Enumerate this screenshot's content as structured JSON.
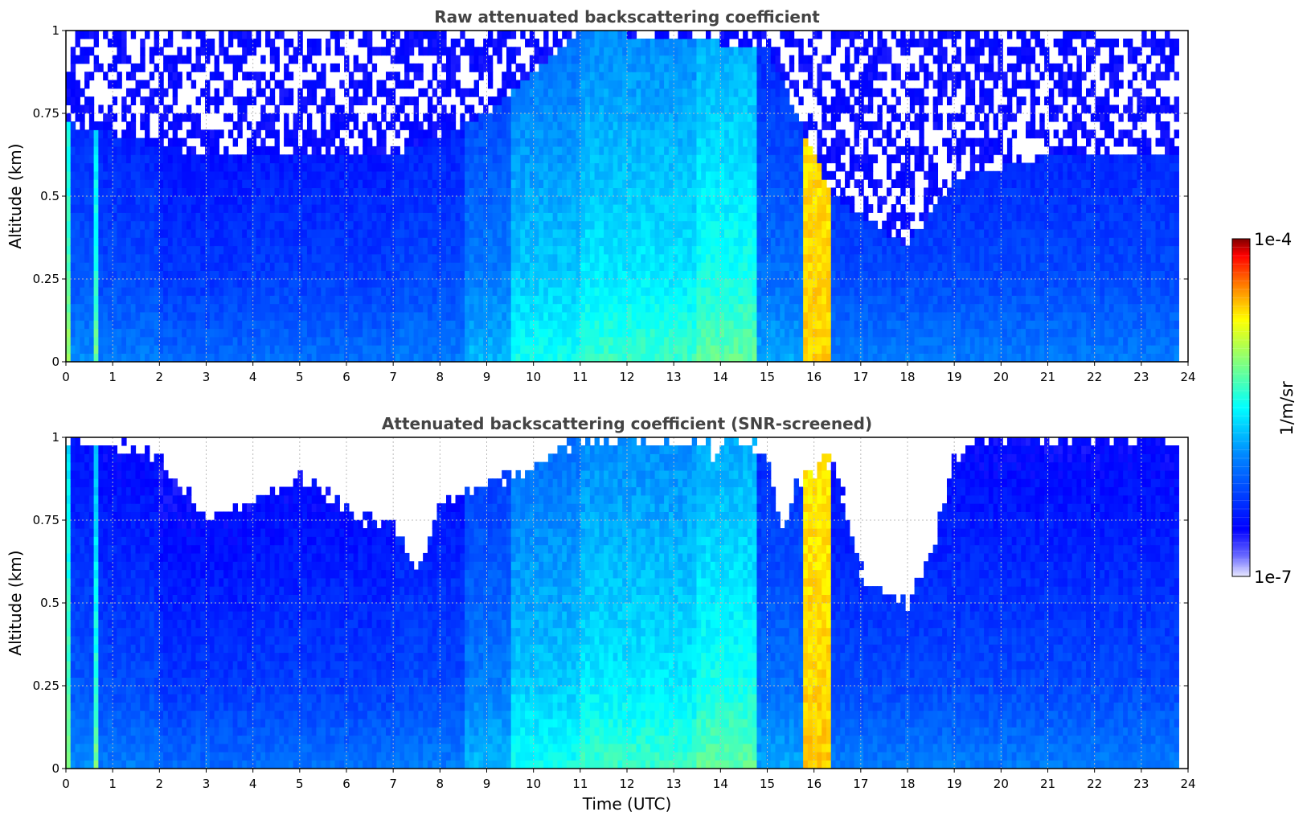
{
  "chart_data": [
    {
      "type": "heatmap",
      "title": "Raw attenuated backscattering coefficient",
      "xlabel": "",
      "ylabel": "Altitude (km)",
      "xlim": [
        0,
        24
      ],
      "ylim": [
        0,
        1
      ],
      "x_ticks": [
        "0",
        "1",
        "2",
        "3",
        "4",
        "5",
        "6",
        "7",
        "8",
        "9",
        "10",
        "11",
        "12",
        "13",
        "14",
        "15",
        "16",
        "17",
        "18",
        "19",
        "20",
        "21",
        "22",
        "23",
        "24"
      ],
      "y_ticks": [
        "0",
        "0.25",
        "0.5",
        "0.75",
        "1"
      ],
      "grid": true,
      "data_end_time": 23.8,
      "profiles": [
        {
          "t0": 0.0,
          "t1": 0.05,
          "level": 0.62
        },
        {
          "t0": 0.05,
          "t1": 0.55,
          "level": 0.32
        },
        {
          "t0": 0.55,
          "t1": 0.65,
          "level": 0.58
        },
        {
          "t0": 0.65,
          "t1": 2.0,
          "level": 0.3
        },
        {
          "t0": 2.0,
          "t1": 4.0,
          "level": 0.27
        },
        {
          "t0": 4.0,
          "t1": 7.0,
          "level": 0.28
        },
        {
          "t0": 7.0,
          "t1": 8.5,
          "level": 0.3
        },
        {
          "t0": 8.5,
          "t1": 9.5,
          "level": 0.38
        },
        {
          "t0": 9.5,
          "t1": 11.0,
          "level": 0.48
        },
        {
          "t0": 11.0,
          "t1": 13.5,
          "level": 0.52
        },
        {
          "t0": 13.5,
          "t1": 14.8,
          "level": 0.56
        },
        {
          "t0": 14.8,
          "t1": 15.8,
          "level": 0.36
        },
        {
          "t0": 15.8,
          "t1": 16.35,
          "level": 0.8
        },
        {
          "t0": 16.35,
          "t1": 18.8,
          "level": 0.3
        },
        {
          "t0": 18.8,
          "t1": 21.0,
          "level": 0.3
        },
        {
          "t0": 21.0,
          "t1": 23.8,
          "level": 0.3
        }
      ],
      "clear_air_altitude_km": [
        {
          "t": 0.0,
          "z": 0.72
        },
        {
          "t": 3.0,
          "z": 0.62
        },
        {
          "t": 7.0,
          "z": 0.62
        },
        {
          "t": 9.0,
          "z": 0.75
        },
        {
          "t": 11.0,
          "z": 1.0
        },
        {
          "t": 15.0,
          "z": 0.95
        },
        {
          "t": 16.4,
          "z": 0.5
        },
        {
          "t": 18.0,
          "z": 0.35
        },
        {
          "t": 19.0,
          "z": 0.55
        },
        {
          "t": 21.0,
          "z": 0.62
        },
        {
          "t": 23.8,
          "z": 0.62
        }
      ]
    },
    {
      "type": "heatmap",
      "title": "Attenuated backscattering coefficient (SNR-screened)",
      "xlabel": "Time (UTC)",
      "ylabel": "Altitude (km)",
      "xlim": [
        0,
        24
      ],
      "ylim": [
        0,
        1
      ],
      "x_ticks": [
        "0",
        "1",
        "2",
        "3",
        "4",
        "5",
        "6",
        "7",
        "8",
        "9",
        "10",
        "11",
        "12",
        "13",
        "14",
        "15",
        "16",
        "17",
        "18",
        "19",
        "20",
        "21",
        "22",
        "23",
        "24"
      ],
      "y_ticks": [
        "0",
        "0.25",
        "0.5",
        "0.75",
        "1"
      ],
      "grid": true,
      "data_end_time": 23.8,
      "screened_out_ceiling_km": [
        {
          "t": 0.0,
          "z": 1.0
        },
        {
          "t": 1.0,
          "z": 0.97
        },
        {
          "t": 2.0,
          "z": 0.95
        },
        {
          "t": 3.0,
          "z": 0.76
        },
        {
          "t": 4.0,
          "z": 0.8
        },
        {
          "t": 5.0,
          "z": 0.88
        },
        {
          "t": 6.0,
          "z": 0.78
        },
        {
          "t": 7.0,
          "z": 0.74
        },
        {
          "t": 7.5,
          "z": 0.6
        },
        {
          "t": 8.0,
          "z": 0.8
        },
        {
          "t": 9.0,
          "z": 0.86
        },
        {
          "t": 10.0,
          "z": 0.9
        },
        {
          "t": 11.0,
          "z": 1.0
        },
        {
          "t": 13.7,
          "z": 1.0
        },
        {
          "t": 13.8,
          "z": 0.88
        },
        {
          "t": 14.0,
          "z": 1.0
        },
        {
          "t": 15.0,
          "z": 0.95
        },
        {
          "t": 15.3,
          "z": 0.7
        },
        {
          "t": 15.6,
          "z": 0.85
        },
        {
          "t": 16.4,
          "z": 0.95
        },
        {
          "t": 17.0,
          "z": 0.6
        },
        {
          "t": 17.5,
          "z": 0.52
        },
        {
          "t": 18.0,
          "z": 0.48
        },
        {
          "t": 18.5,
          "z": 0.65
        },
        {
          "t": 19.0,
          "z": 0.95
        },
        {
          "t": 19.5,
          "z": 1.0
        },
        {
          "t": 23.8,
          "z": 1.0
        }
      ]
    }
  ],
  "colorbar": {
    "label": "1/m/sr",
    "max_label": "1e-4",
    "min_label": "1e-7",
    "colormap": "jet",
    "scale": "log"
  },
  "colors": {
    "low": "#e8e8ff",
    "blue": "#0000ff",
    "cyan": "#00ffff",
    "yellow": "#ffff00",
    "red": "#ff0000",
    "dark_red": "#800000",
    "title": "#444444",
    "grid": "#bbbbbb"
  }
}
